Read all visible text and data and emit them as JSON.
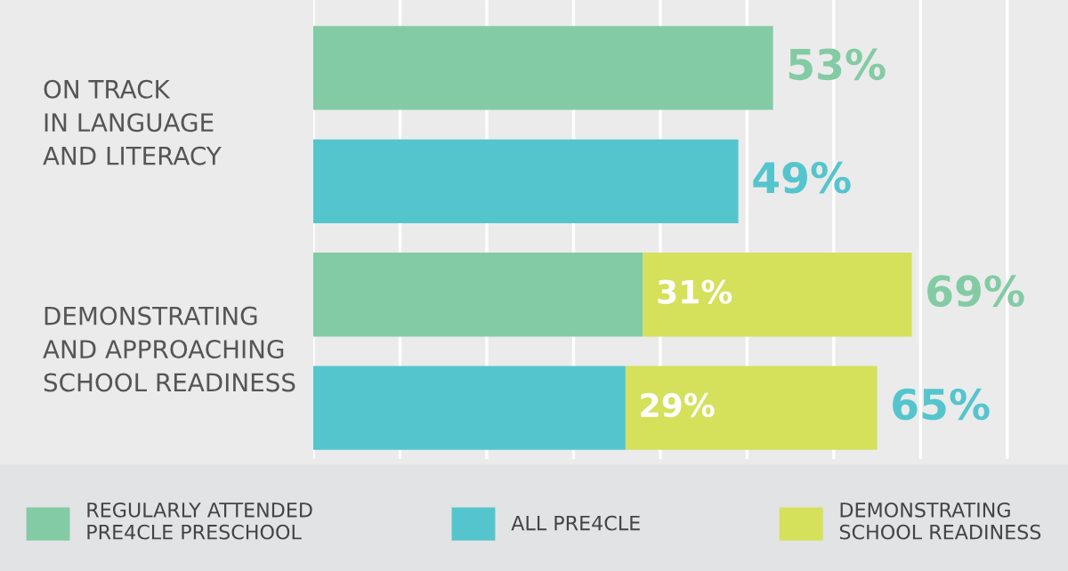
{
  "chart_data": {
    "type": "bar",
    "orientation": "horizontal",
    "stacked": true,
    "categories": [
      "ON TRACK\nIN LANGUAGE\nAND LITERACY",
      null,
      "DEMONSTRATING\nAND APPROACHING\nSCHOOL READINESS",
      null
    ],
    "series": [
      {
        "name": "REGULARLY ATTENDED\nPRE4CLE PRESCHOOL",
        "color": "#83cba4",
        "values": [
          53,
          null,
          38,
          null
        ]
      },
      {
        "name": "ALL PRE4CLE",
        "color": "#55c5cd",
        "values": [
          null,
          49,
          null,
          36
        ]
      },
      {
        "name": "DEMONSTRATING\nSCHOOL READINESS",
        "color": "#d5e05b",
        "values": [
          null,
          null,
          31,
          29
        ],
        "value_labels": [
          null,
          null,
          "31%",
          "29%"
        ]
      }
    ],
    "totals": [
      "53%",
      "49%",
      "69%",
      "65%"
    ],
    "xlim": [
      0,
      87
    ],
    "xticks": [
      {
        "value": 0,
        "label": null
      },
      {
        "value": 10,
        "label": null
      },
      {
        "value": 20,
        "label": null
      },
      {
        "value": 30,
        "label": null
      },
      {
        "value": 40,
        "label": null
      },
      {
        "value": 50,
        "label": null
      },
      {
        "value": 60,
        "label": null
      },
      {
        "value": 70,
        "label": null
      },
      {
        "value": 80,
        "label": null
      }
    ],
    "grid": "x",
    "legend": "bottom"
  }
}
